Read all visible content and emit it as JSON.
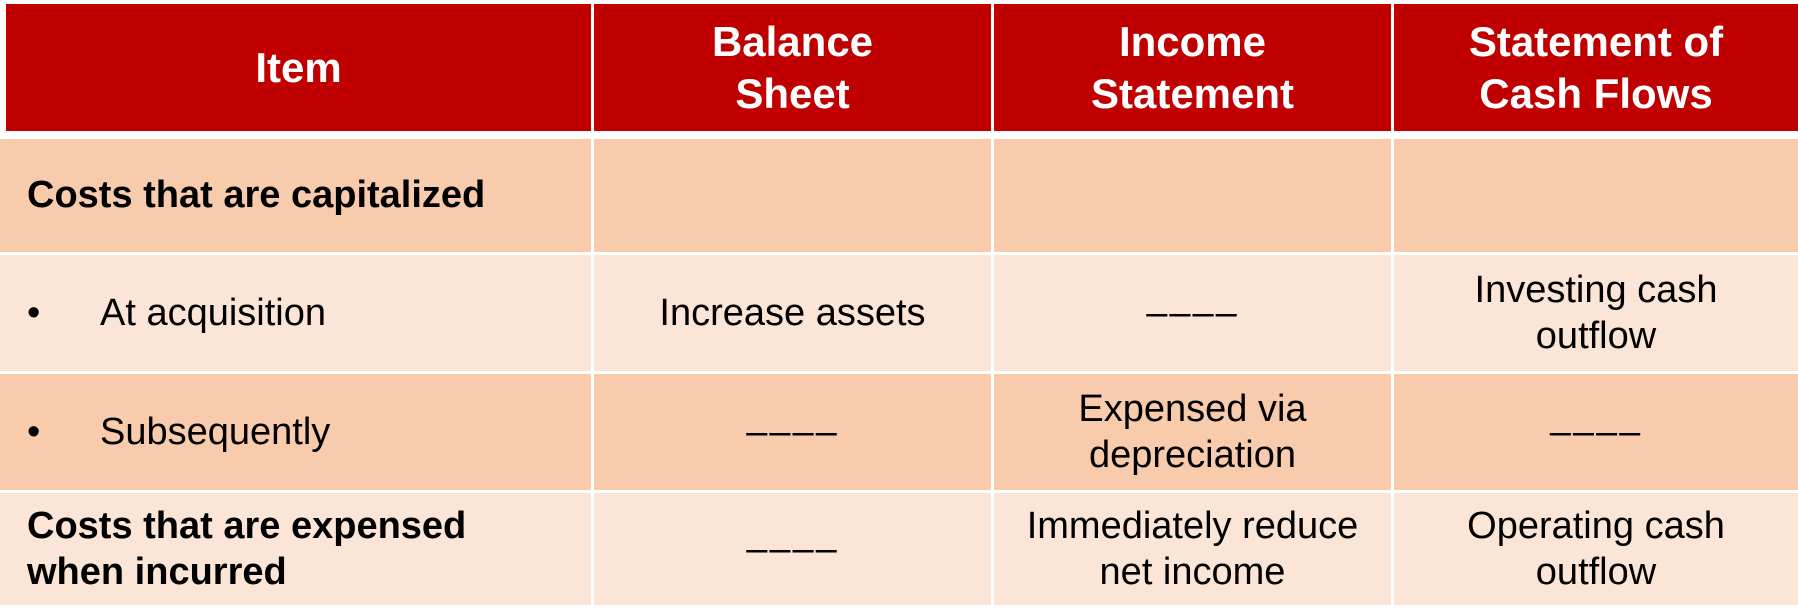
{
  "table": {
    "headers": [
      "Item",
      "Balance\nSheet",
      "Income\nStatement",
      "Statement of\nCash Flows"
    ],
    "header_lines": [
      [
        "Item"
      ],
      [
        "Balance",
        "Sheet"
      ],
      [
        "Income",
        "Statement"
      ],
      [
        "Statement of",
        "Cash Flows"
      ]
    ],
    "rows": [
      {
        "item": "Costs that are capitalized",
        "item_lines": [
          "Costs that are capitalized"
        ],
        "bullet": "",
        "balance_sheet": [
          "",
          ""
        ],
        "income_statement": [
          "",
          ""
        ],
        "cash_flows": [
          "",
          ""
        ]
      },
      {
        "item": "At acquisition",
        "bullet": "•",
        "balance_sheet": [
          "Increase assets",
          ""
        ],
        "income_statement": [
          "––––",
          ""
        ],
        "cash_flows": [
          "Investing cash",
          "outflow"
        ]
      },
      {
        "item": "Subsequently",
        "bullet": "•",
        "balance_sheet": [
          "––––",
          ""
        ],
        "income_statement": [
          "Expensed via",
          "depreciation"
        ],
        "cash_flows": [
          "––––",
          ""
        ]
      },
      {
        "item": "Costs that are expensed when incurred",
        "item_lines": [
          "Costs that are expensed",
          "when incurred"
        ],
        "bullet": "",
        "balance_sheet": [
          "––––",
          ""
        ],
        "income_statement": [
          "Immediately reduce",
          "net income"
        ],
        "cash_flows": [
          "Operating cash",
          "outflow"
        ]
      }
    ]
  },
  "colors": {
    "header_bg": "#c00000",
    "header_text": "#ffffff",
    "row_dark": "#f7cbac",
    "row_light": "#fbe5d6"
  }
}
